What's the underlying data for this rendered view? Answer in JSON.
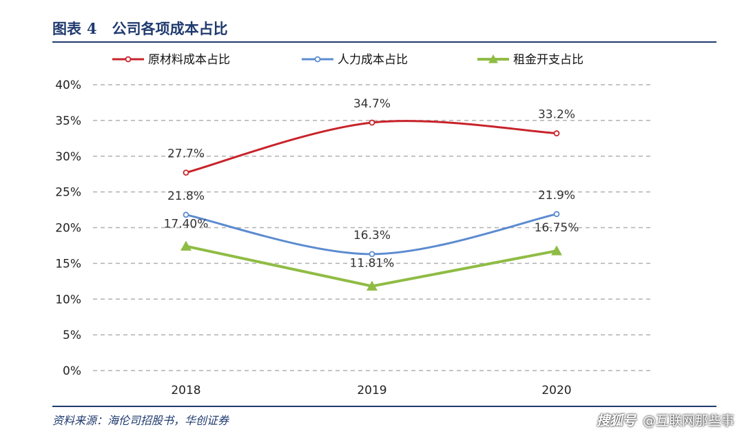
{
  "figure": {
    "label": "图表",
    "number": "4",
    "title": "公司各项成本占比",
    "source": "资料来源：海伦司招股书，华创证券"
  },
  "watermark": {
    "icon_name": "sohu-logo-icon",
    "icon_text": "搜狐号",
    "account": "@互联网那些事"
  },
  "chart_data": {
    "type": "line",
    "categories": [
      "2018",
      "2019",
      "2020"
    ],
    "ylim": [
      0,
      40
    ],
    "ytick_values": [
      0,
      5,
      10,
      15,
      20,
      25,
      30,
      35,
      40
    ],
    "ytick_labels": [
      "0%",
      "5%",
      "10%",
      "15%",
      "20%",
      "25%",
      "30%",
      "35%",
      "40%"
    ],
    "grid": true,
    "legend_position": "top",
    "series": [
      {
        "name": "原材料成本占比",
        "values": [
          27.7,
          34.7,
          33.2
        ],
        "labels": [
          "27.7%",
          "34.7%",
          "33.2%"
        ],
        "color": "#c8232a",
        "marker": "circle",
        "smooth": true
      },
      {
        "name": "人力成本占比",
        "values": [
          21.8,
          16.3,
          21.9
        ],
        "labels": [
          "21.8%",
          "16.3%",
          "21.9%"
        ],
        "color": "#5b8bd0",
        "marker": "circle",
        "smooth": true
      },
      {
        "name": "租金开支占比",
        "values": [
          17.4,
          11.81,
          16.75
        ],
        "labels": [
          "17.40%",
          "11.81%",
          "16.75%"
        ],
        "color": "#8fbc45",
        "marker": "triangle",
        "smooth": false
      }
    ]
  }
}
